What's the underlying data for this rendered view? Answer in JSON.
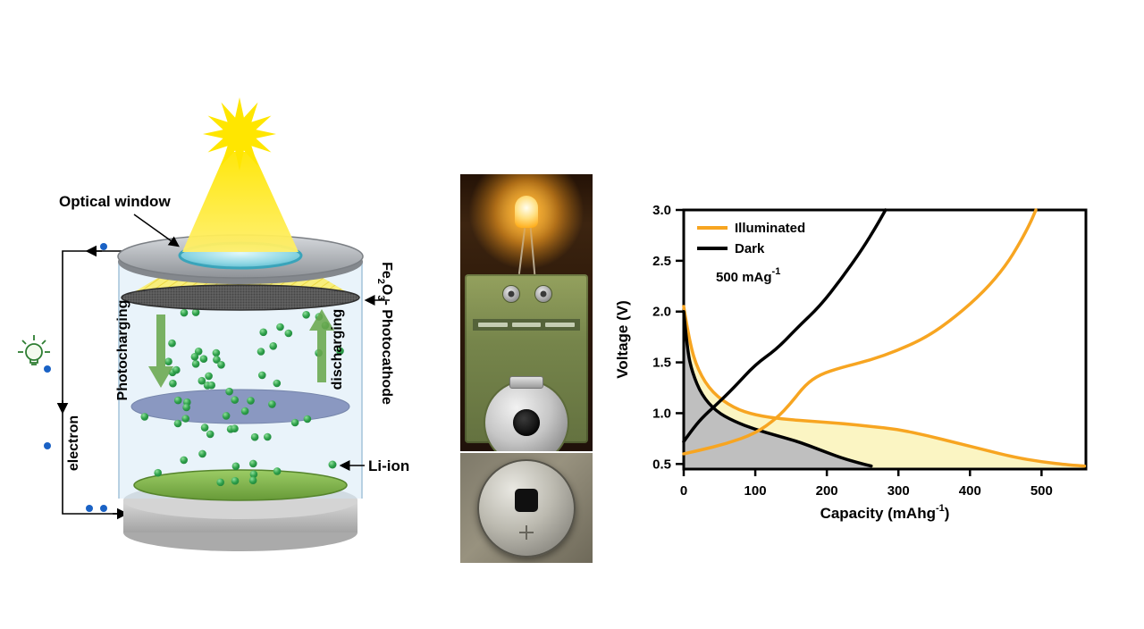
{
  "chart_data": {
    "type": "line",
    "title": "",
    "xlabel": "Capacity (mAhg⁻¹)",
    "xlabel_main": "Capacity (mAhg",
    "xlabel_sup": "-1",
    "xlabel_close": ")",
    "ylabel": "Voltage (V)",
    "xlim": [
      0,
      562
    ],
    "ylim": [
      0.45,
      3.0
    ],
    "xticks": [
      0,
      100,
      200,
      300,
      400,
      500
    ],
    "yticks": [
      0.5,
      1.0,
      1.5,
      2.0,
      2.5,
      3.0
    ],
    "grid": false,
    "legend_position": "top-left",
    "legend": [
      {
        "label": "Illuminated",
        "color": "#F7A521"
      },
      {
        "label": "Dark",
        "color": "#000000"
      }
    ],
    "annotation": {
      "text": "500 mAg⁻¹",
      "main": "500 mAg",
      "sup": "-1",
      "color": "#2438CC"
    },
    "series": [
      {
        "name": "Illuminated discharge",
        "color": "#F7A521",
        "fill": "#FBF5C3",
        "points": [
          [
            0,
            2.05
          ],
          [
            8,
            1.7
          ],
          [
            20,
            1.42
          ],
          [
            40,
            1.2
          ],
          [
            70,
            1.05
          ],
          [
            100,
            0.98
          ],
          [
            140,
            0.94
          ],
          [
            180,
            0.92
          ],
          [
            220,
            0.9
          ],
          [
            260,
            0.87
          ],
          [
            300,
            0.84
          ],
          [
            340,
            0.78
          ],
          [
            380,
            0.71
          ],
          [
            420,
            0.64
          ],
          [
            460,
            0.57
          ],
          [
            500,
            0.52
          ],
          [
            540,
            0.49
          ],
          [
            560,
            0.48
          ]
        ]
      },
      {
        "name": "Dark discharge",
        "color": "#000000",
        "fill": "#BFBFBF",
        "points": [
          [
            0,
            2.0
          ],
          [
            5,
            1.62
          ],
          [
            12,
            1.4
          ],
          [
            25,
            1.18
          ],
          [
            45,
            1.02
          ],
          [
            70,
            0.92
          ],
          [
            100,
            0.84
          ],
          [
            130,
            0.78
          ],
          [
            160,
            0.72
          ],
          [
            190,
            0.64
          ],
          [
            220,
            0.56
          ],
          [
            245,
            0.51
          ],
          [
            262,
            0.48
          ]
        ]
      },
      {
        "name": "Dark charge",
        "color": "#000000",
        "points": [
          [
            0,
            0.72
          ],
          [
            10,
            0.82
          ],
          [
            25,
            0.95
          ],
          [
            45,
            1.08
          ],
          [
            70,
            1.25
          ],
          [
            100,
            1.48
          ],
          [
            130,
            1.63
          ],
          [
            160,
            1.85
          ],
          [
            190,
            2.05
          ],
          [
            220,
            2.32
          ],
          [
            250,
            2.62
          ],
          [
            270,
            2.85
          ],
          [
            282,
            3.0
          ]
        ]
      },
      {
        "name": "Illuminated charge",
        "color": "#F7A521",
        "points": [
          [
            0,
            0.6
          ],
          [
            20,
            0.63
          ],
          [
            60,
            0.7
          ],
          [
            100,
            0.8
          ],
          [
            130,
            0.95
          ],
          [
            150,
            1.1
          ],
          [
            170,
            1.28
          ],
          [
            190,
            1.38
          ],
          [
            220,
            1.45
          ],
          [
            260,
            1.52
          ],
          [
            300,
            1.62
          ],
          [
            340,
            1.75
          ],
          [
            380,
            1.95
          ],
          [
            420,
            2.2
          ],
          [
            450,
            2.45
          ],
          [
            470,
            2.68
          ],
          [
            485,
            2.88
          ],
          [
            492,
            3.0
          ]
        ]
      }
    ]
  },
  "diagram": {
    "labels": {
      "optical_window": "Optical window",
      "photocharging": "Photocharging",
      "discharging": "discharging",
      "electron": "electron",
      "li_ion": "Li-ion",
      "photocathode": {
        "fe": "Fe",
        "sub2": "2",
        "o": "O",
        "sub3": "3",
        "rest": "- Photocathode"
      }
    },
    "colors": {
      "li_ion_dot": "#2FA14B",
      "electron_dot": "#1A62C5",
      "beam": "#FFE600",
      "arrow_green": "#6AA84F",
      "window": "#7FD4E0",
      "anode": "#7CB342",
      "separator": "#8291BD"
    }
  }
}
